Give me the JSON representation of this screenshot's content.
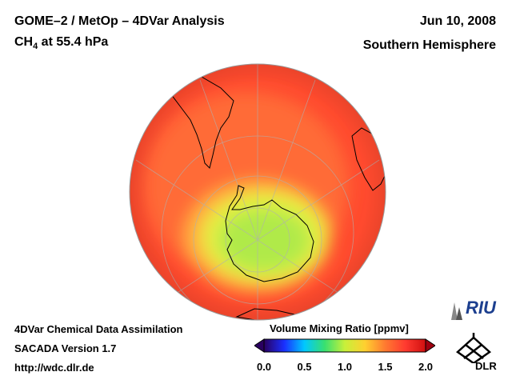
{
  "header": {
    "title": "GOME–2 / MetOp – 4DVar Analysis",
    "species": "CH",
    "species_sub": "4",
    "pressure": " at 55.4 hPa",
    "date": "Jun 10, 2008",
    "hemisphere": "Southern Hemisphere"
  },
  "footer": {
    "line1": "4DVar Chemical Data Assimilation",
    "line2": "SACADA Version 1.7",
    "line3": "http://wdc.dlr.de"
  },
  "colorbar": {
    "title": "Volume Mixing Ratio [ppmv]",
    "ticks": [
      "0.0",
      "0.5",
      "1.0",
      "1.5",
      "2.0"
    ],
    "colors": [
      "#2a0060",
      "#1a2fff",
      "#00c8ff",
      "#38e070",
      "#c8f03a",
      "#ffd030",
      "#ff7a30",
      "#ff3a30",
      "#d01010"
    ]
  },
  "logos": {
    "riu": "RIU",
    "dlr": "DLR"
  },
  "map": {
    "projection": "orthographic",
    "center": "South Pole",
    "field_colors": {
      "ocean_high": "#ff4a2e",
      "band": "#ff6a34",
      "vortex_outer": "#ffc040",
      "vortex_mid": "#e0f040",
      "vortex_core": "#a8e848"
    }
  }
}
